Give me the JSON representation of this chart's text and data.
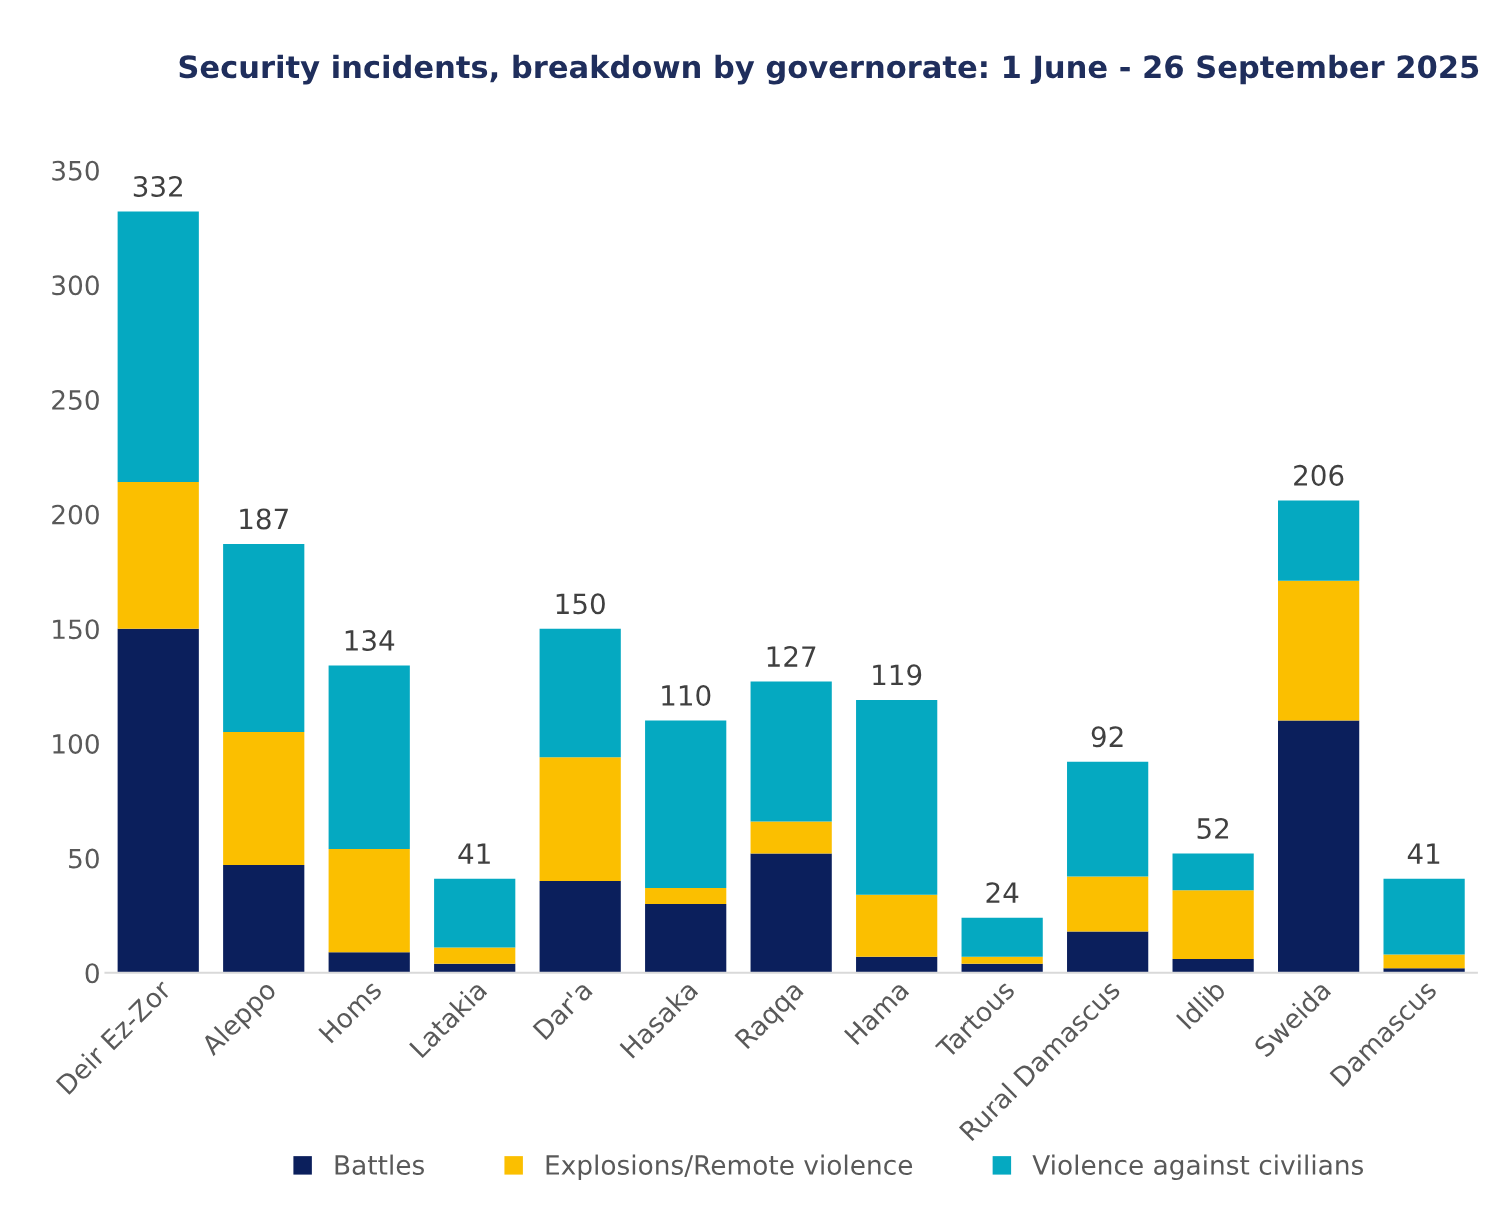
{
  "chart_data": {
    "type": "bar",
    "stacked": true,
    "title": "Security incidents, breakdown by governorate: 1 June - 26 September 2025",
    "categories": [
      "Deir Ez-Zor",
      "Aleppo",
      "Homs",
      "Latakia",
      "Dar'a",
      "Hasaka",
      "Raqqa",
      "Hama",
      "Tartous",
      "Rural Damascus",
      "Idlib",
      "Sweida",
      "Damascus"
    ],
    "series": [
      {
        "name": "Battles",
        "color": "#0b1f5c",
        "values": [
          150,
          47,
          9,
          4,
          40,
          30,
          52,
          7,
          4,
          18,
          6,
          110,
          2
        ]
      },
      {
        "name": "Explosions/Remote violence",
        "color": "#fbbf00",
        "values": [
          64,
          58,
          45,
          7,
          54,
          7,
          14,
          27,
          3,
          24,
          30,
          61,
          6
        ]
      },
      {
        "name": "Violence against civilians",
        "color": "#05a9c1",
        "values": [
          118,
          82,
          80,
          30,
          56,
          73,
          61,
          85,
          17,
          50,
          16,
          35,
          33
        ]
      }
    ],
    "totals": [
      "332",
      "187",
      "134",
      "41",
      "150",
      "110",
      "127",
      "119",
      "24",
      "92",
      "52",
      "206",
      "41"
    ],
    "ylim": [
      0,
      350
    ],
    "yticks": [
      0,
      50,
      100,
      150,
      200,
      250,
      300,
      350
    ],
    "grid": false,
    "legend": "bottom"
  }
}
